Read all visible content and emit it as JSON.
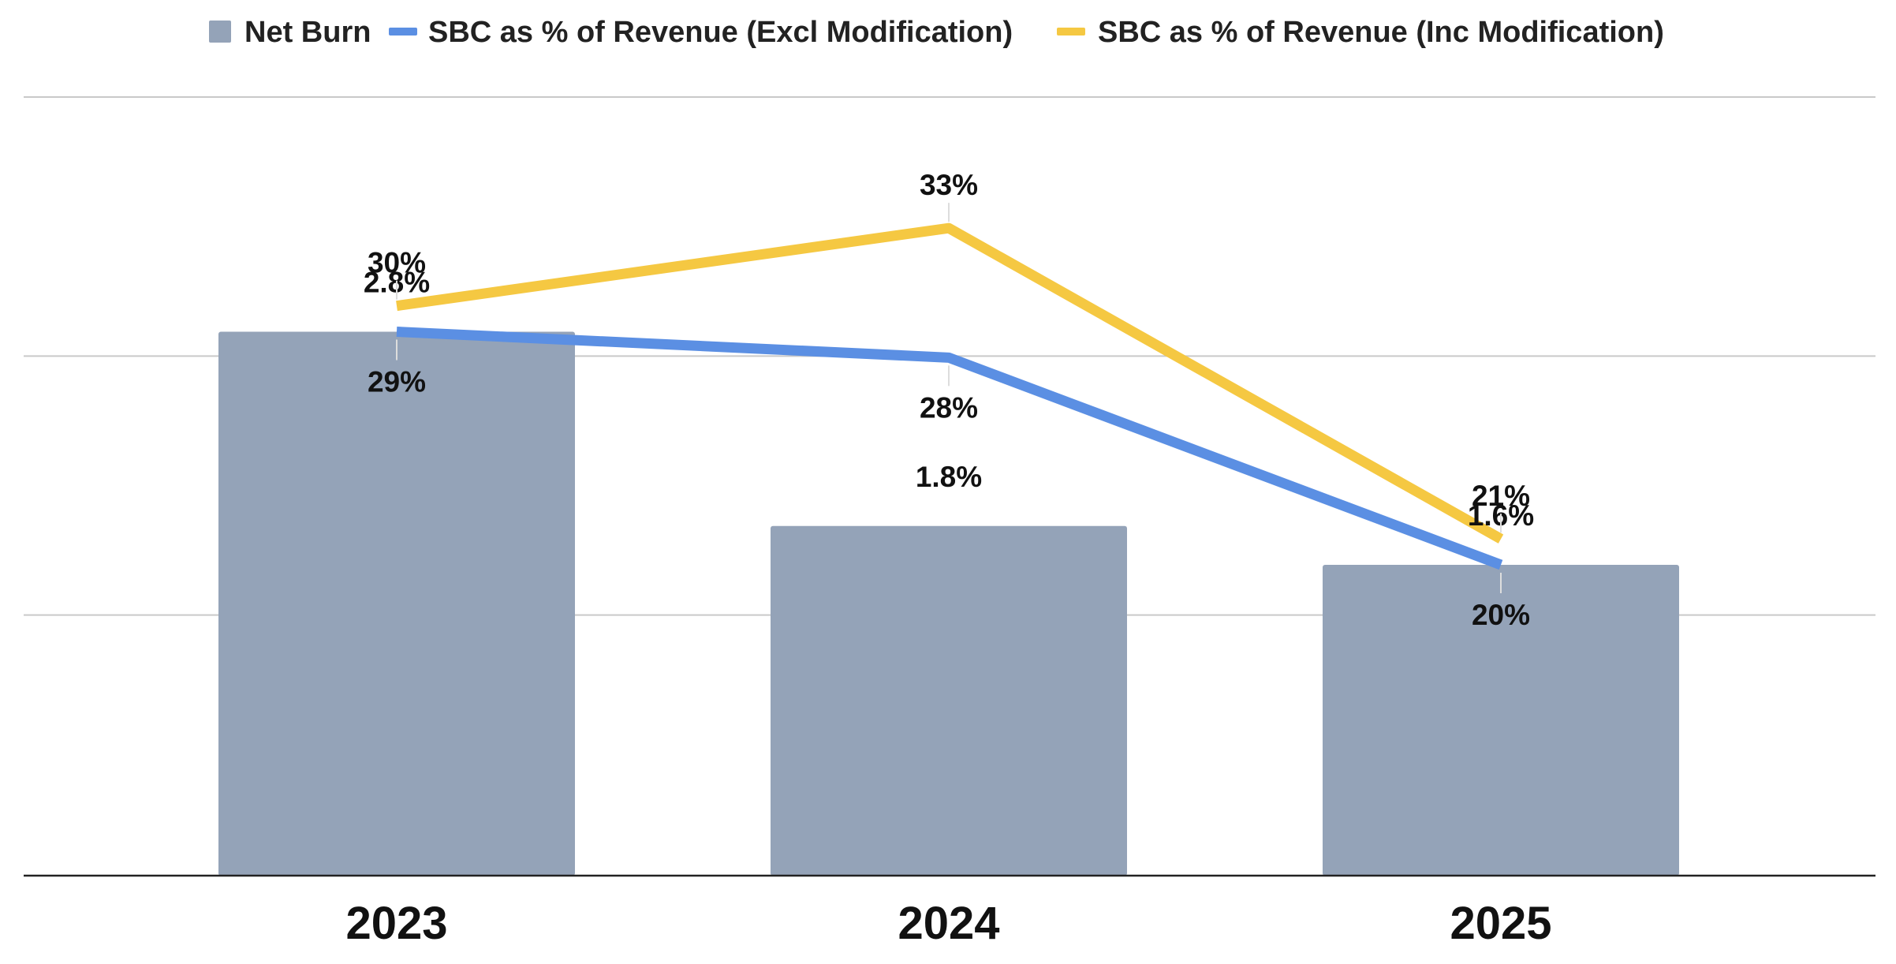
{
  "chart_data": {
    "type": "bar",
    "categories": [
      "2023",
      "2024",
      "2025"
    ],
    "series": [
      {
        "name": "Net Burn",
        "kind": "bar",
        "color": "#94a3b8",
        "values": [
          2.8,
          1.8,
          1.6
        ],
        "labels": [
          "2.8%",
          "1.8%",
          "1.6%"
        ]
      },
      {
        "name": "SBC as % of Revenue (Excl Modification)",
        "kind": "line",
        "color": "#5b8fe3",
        "values": [
          29,
          28,
          20
        ],
        "labels": [
          "29%",
          "28%",
          "20%"
        ]
      },
      {
        "name": "SBC as % of Revenue (Inc Modification)",
        "kind": "line",
        "color": "#f5c842",
        "values": [
          30,
          33,
          21
        ],
        "labels": [
          "30%",
          "33%",
          "21%"
        ]
      }
    ],
    "title": "",
    "xlabel": "",
    "ylabel": "",
    "bar_ylim": [
      0,
      4.0
    ],
    "line_ylim": [
      8,
      38
    ],
    "gridlines": true,
    "legend_position": "top"
  }
}
